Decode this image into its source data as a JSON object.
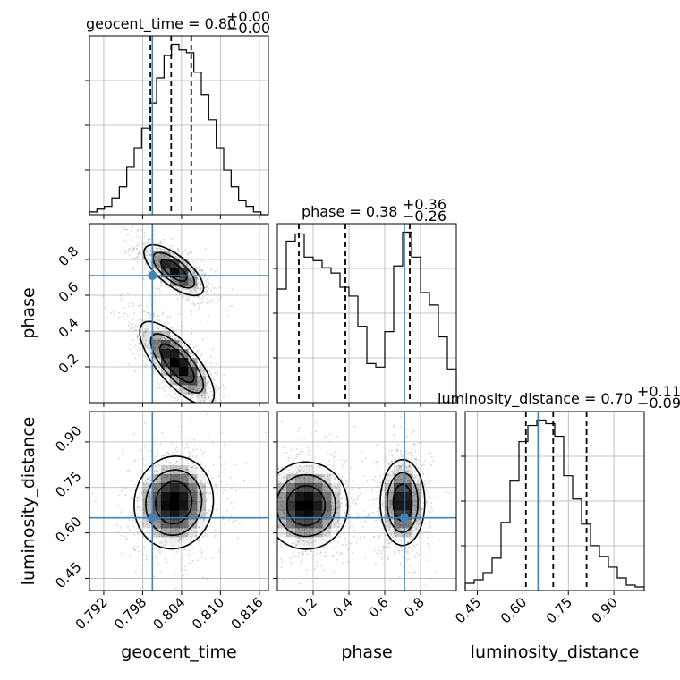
{
  "chart_data": {
    "type": "corner",
    "parameters": [
      "geocent_time",
      "phase",
      "luminosity_distance"
    ],
    "truths": {
      "geocent_time": 0.7995,
      "phase": 0.71,
      "luminosity_distance": 0.65
    },
    "ranges": {
      "geocent_time": [
        0.7898,
        0.8174
      ],
      "phase": [
        0.0,
        1.0
      ],
      "luminosity_distance": [
        0.41,
        1.0
      ]
    },
    "ticks": {
      "geocent_time": [
        0.792,
        0.798,
        0.804,
        0.81,
        0.816
      ],
      "phase": [
        0.2,
        0.4,
        0.6,
        0.8
      ],
      "luminosity_distance": [
        0.45,
        0.6,
        0.75,
        0.9
      ]
    },
    "tick_labels": {
      "geocent_time": [
        "0.792",
        "0.798",
        "0.804",
        "0.810",
        "0.816"
      ],
      "phase": [
        "0.2",
        "0.4",
        "0.6",
        "0.8"
      ],
      "luminosity_distance": [
        "0.45",
        "0.60",
        "0.75",
        "0.90"
      ]
    },
    "titles": {
      "geocent_time": {
        "main": "geocent_time = 0.80",
        "sup": "+0.00",
        "sub": "−0.00"
      },
      "phase": {
        "main": "phase = 0.38",
        "sup": "+0.36",
        "sub": "−0.26"
      },
      "luminosity_distance": {
        "main": "luminosity_distance = 0.70",
        "sup": "+0.11",
        "sub": "−0.09"
      }
    },
    "quantiles": {
      "geocent_time": [
        0.7992,
        0.8024,
        0.8055
      ],
      "phase": [
        0.12,
        0.38,
        0.74
      ],
      "luminosity_distance": [
        0.61,
        0.7,
        0.81
      ]
    },
    "histograms": {
      "geocent_time": {
        "range": [
          0.7898,
          0.8174
        ],
        "counts": [
          1,
          2,
          3,
          6,
          10,
          17,
          24,
          31,
          40,
          49,
          57,
          61,
          59,
          58,
          51,
          43,
          34,
          24,
          16,
          10,
          5,
          3,
          1,
          0
        ]
      },
      "phase": {
        "range": [
          0.0,
          1.0
        ],
        "counts": [
          64,
          91,
          95,
          82,
          80,
          76,
          73,
          65,
          60,
          43,
          22,
          20,
          40,
          77,
          96,
          82,
          62,
          55,
          37,
          19
        ]
      },
      "luminosity_distance": {
        "range": [
          0.41,
          1.0
        ],
        "counts": [
          4,
          6,
          10,
          18,
          38,
          61,
          83,
          92,
          95,
          93,
          86,
          64,
          51,
          37,
          25,
          19,
          13,
          7,
          3,
          2
        ]
      }
    },
    "pairs": [
      {
        "x": "geocent_time",
        "y": "phase",
        "blobs": [
          {
            "cx": 0.8028,
            "cy": 0.74,
            "sx": 0.0026,
            "sy": 0.08,
            "rho": -0.7,
            "w": 1.0
          },
          {
            "cx": 0.8033,
            "cy": 0.22,
            "sx": 0.0032,
            "sy": 0.13,
            "rho": -0.75,
            "w": 1.05
          }
        ]
      },
      {
        "x": "geocent_time",
        "y": "luminosity_distance",
        "blobs": [
          {
            "cx": 0.8028,
            "cy": 0.7,
            "sx": 0.0034,
            "sy": 0.085,
            "rho": 0.05,
            "w": 1.0
          }
        ]
      },
      {
        "x": "phase",
        "y": "luminosity_distance",
        "blobs": [
          {
            "cx": 0.16,
            "cy": 0.69,
            "sx": 0.13,
            "sy": 0.08,
            "rho": 0.0,
            "w": 1.0
          },
          {
            "cx": 0.7,
            "cy": 0.7,
            "sx": 0.07,
            "sy": 0.08,
            "rho": 0.0,
            "w": 0.95
          }
        ]
      }
    ],
    "colors": {
      "truth": "#4682b4",
      "histogram": "#000000",
      "density": "#000000",
      "scatter": "#a0a0a0",
      "grid": "#b0b0b0"
    }
  }
}
